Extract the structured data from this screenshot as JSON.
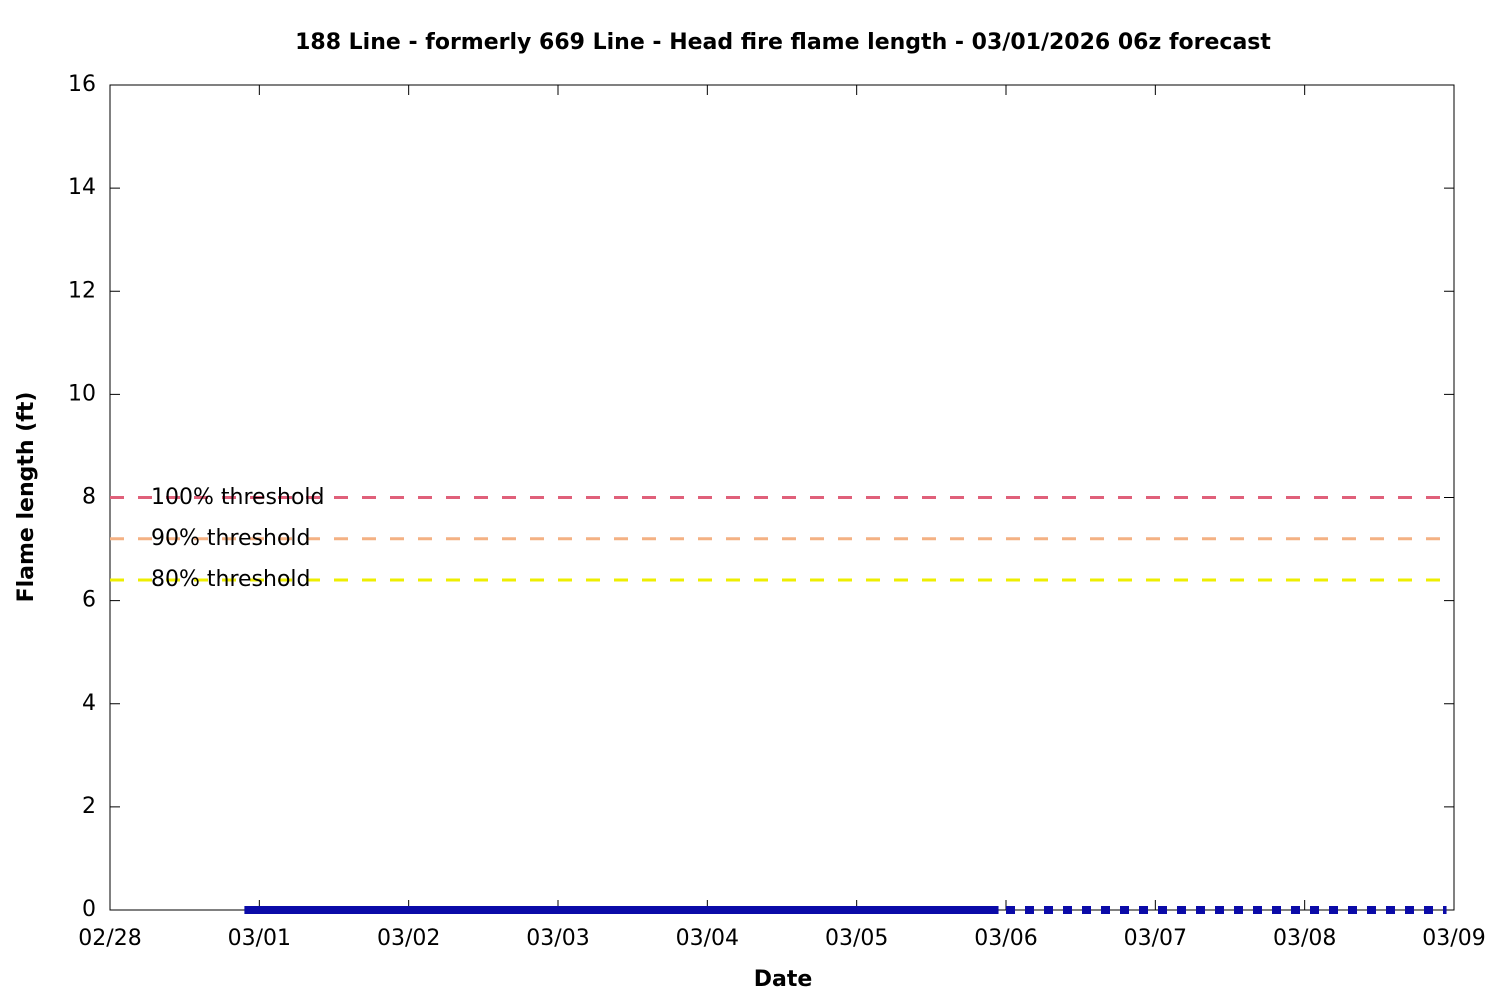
{
  "chart_data": {
    "type": "line",
    "title": "188 Line - formerly 669 Line - Head fire flame length - 03/01/2026 06z forecast",
    "x_label": "Date",
    "y_label": "Flame length (ft)",
    "xlim": [
      0,
      9
    ],
    "xticks": [
      {
        "value": 0,
        "label": "02/28"
      },
      {
        "value": 1,
        "label": "03/01"
      },
      {
        "value": 2,
        "label": "03/02"
      },
      {
        "value": 3,
        "label": "03/03"
      },
      {
        "value": 4,
        "label": "03/04"
      },
      {
        "value": 5,
        "label": "03/05"
      },
      {
        "value": 6,
        "label": "03/06"
      },
      {
        "value": 7,
        "label": "03/07"
      },
      {
        "value": 8,
        "label": "03/08"
      },
      {
        "value": 9,
        "label": "03/09"
      }
    ],
    "ylim": [
      0,
      16
    ],
    "yticks": [
      0,
      2,
      4,
      6,
      8,
      10,
      12,
      14,
      16
    ],
    "grid": false,
    "legend_position": "left",
    "series": [
      {
        "name": "100% threshold",
        "color": "#e0607a",
        "style": "dashed",
        "x": [
          0,
          9
        ],
        "values": [
          8,
          8
        ]
      },
      {
        "name": "90% threshold",
        "color": "#f4b183",
        "style": "dashed",
        "x": [
          0,
          9
        ],
        "values": [
          7.2,
          7.2
        ]
      },
      {
        "name": "80% threshold",
        "color": "#eeee00",
        "style": "dashed",
        "x": [
          0,
          9
        ],
        "values": [
          6.4,
          6.4
        ]
      },
      {
        "color": "#0a0aa8",
        "style": "solid",
        "x": [
          0.9,
          5.95
        ],
        "values": [
          0,
          0
        ]
      },
      {
        "color": "#0a0aa8",
        "style": "dotted",
        "x": [
          6.0,
          8.95
        ],
        "values": [
          0,
          0
        ]
      }
    ]
  }
}
